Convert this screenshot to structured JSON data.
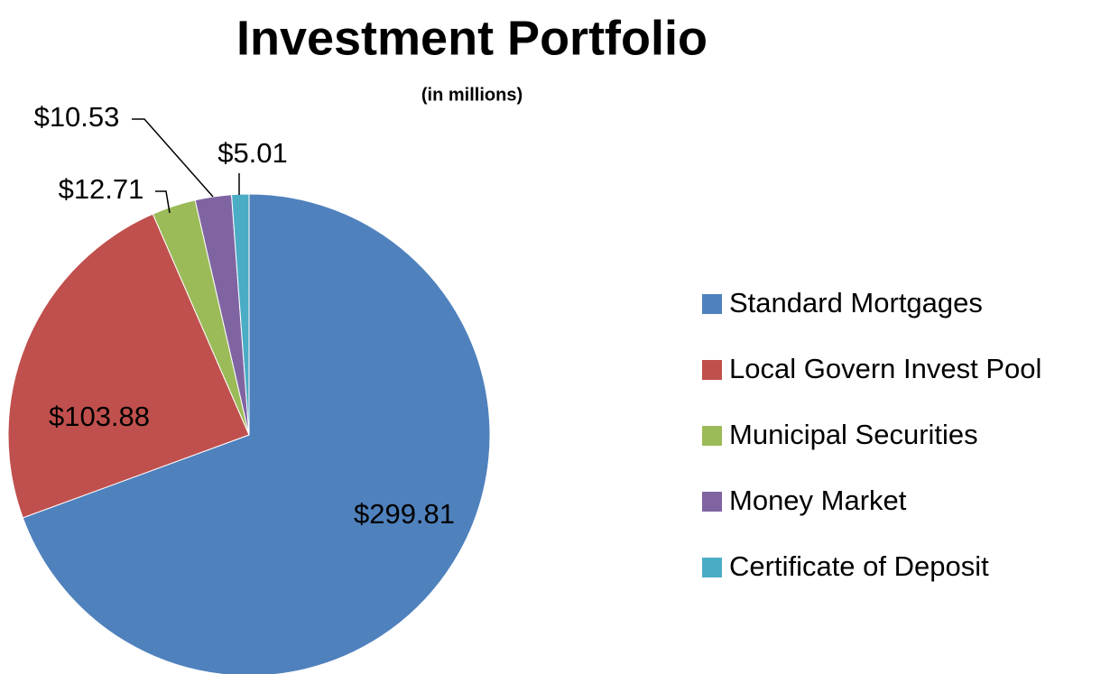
{
  "chart_data": {
    "type": "pie",
    "title": "Investment Portfolio",
    "subtitle": "(in millions)",
    "categories": [
      "Standard Mortgages",
      "Local Govern Invest Pool",
      "Municipal Securities",
      "Money Market",
      "Certificate of Deposit"
    ],
    "values": [
      299.81,
      103.88,
      12.71,
      10.53,
      5.01
    ],
    "value_labels": [
      "$299.81",
      "$103.88",
      "$12.71",
      "$10.53",
      "$5.01"
    ],
    "colors": [
      "#4f81bd",
      "#c0504d",
      "#9bbb59",
      "#8064a2",
      "#4bacc6"
    ],
    "legend": "right"
  }
}
